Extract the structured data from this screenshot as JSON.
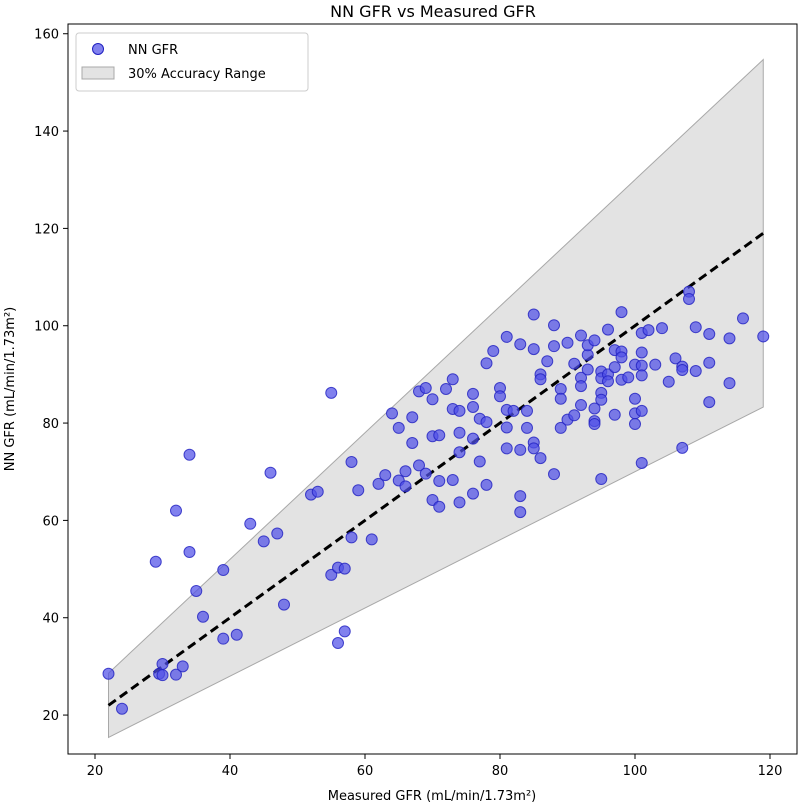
{
  "chart_data": {
    "type": "scatter",
    "title": "NN GFR vs Measured GFR",
    "xlabel": "Measured GFR (mL/min/1.73m²)",
    "ylabel": "NN GFR (mL/min/1.73m²)",
    "xlim": [
      16,
      124
    ],
    "ylim": [
      12,
      162
    ],
    "xticks": [
      20,
      40,
      60,
      80,
      100,
      120
    ],
    "yticks": [
      20,
      40,
      60,
      80,
      100,
      120,
      140,
      160
    ],
    "grid": false,
    "legend_position": "top-left",
    "colors": {
      "points": "#5050e8",
      "points_edge": "#2020c0",
      "band_fill": "#e3e3e3",
      "band_edge": "#a8a8a8",
      "identity": "#000000"
    },
    "band": {
      "name": "30% Accuracy Range",
      "x_range": [
        22,
        119
      ],
      "lower_factor": 0.7,
      "upper_factor": 1.3
    },
    "identity_line": {
      "x_range": [
        22,
        119
      ]
    },
    "series": [
      {
        "name": "NN GFR",
        "points": [
          [
            22,
            28.5
          ],
          [
            24,
            21.3
          ],
          [
            29,
            51.5
          ],
          [
            29.5,
            28.5
          ],
          [
            30,
            30.5
          ],
          [
            30,
            28.2
          ],
          [
            32,
            62
          ],
          [
            32,
            28.3
          ],
          [
            33,
            30
          ],
          [
            34,
            73.5
          ],
          [
            34,
            53.5
          ],
          [
            35,
            45.5
          ],
          [
            36,
            40.2
          ],
          [
            39,
            35.7
          ],
          [
            39,
            49.8
          ],
          [
            41,
            36.5
          ],
          [
            43,
            59.3
          ],
          [
            45,
            55.7
          ],
          [
            46,
            69.8
          ],
          [
            47,
            57.3
          ],
          [
            48,
            42.7
          ],
          [
            52,
            65.3
          ],
          [
            53,
            65.9
          ],
          [
            55,
            86.2
          ],
          [
            55,
            48.8
          ],
          [
            56,
            50.3
          ],
          [
            56,
            34.8
          ],
          [
            57,
            50.1
          ],
          [
            57,
            37.2
          ],
          [
            58,
            56.5
          ],
          [
            58,
            72
          ],
          [
            59,
            66.2
          ],
          [
            61,
            56.1
          ],
          [
            62,
            67.5
          ],
          [
            63,
            69.3
          ],
          [
            64,
            82
          ],
          [
            65,
            68.2
          ],
          [
            65,
            79
          ],
          [
            66,
            70.1
          ],
          [
            66,
            67
          ],
          [
            67,
            75.9
          ],
          [
            67,
            81.2
          ],
          [
            68,
            86.5
          ],
          [
            68,
            71.3
          ],
          [
            69,
            87.2
          ],
          [
            69,
            69.6
          ],
          [
            70,
            77.3
          ],
          [
            70,
            84.9
          ],
          [
            70,
            64.2
          ],
          [
            71,
            77.5
          ],
          [
            71,
            62.8
          ],
          [
            71,
            68.1
          ],
          [
            72,
            87
          ],
          [
            73,
            89
          ],
          [
            73,
            82.9
          ],
          [
            73,
            68.3
          ],
          [
            74,
            82.5
          ],
          [
            74,
            78
          ],
          [
            74,
            74
          ],
          [
            74,
            63.7
          ],
          [
            76,
            86
          ],
          [
            76,
            83.3
          ],
          [
            76,
            76.8
          ],
          [
            76,
            65.5
          ],
          [
            77,
            80.9
          ],
          [
            77,
            72.1
          ],
          [
            78,
            92.3
          ],
          [
            78,
            80.2
          ],
          [
            78,
            67.3
          ],
          [
            79,
            94.8
          ],
          [
            80,
            87.2
          ],
          [
            80,
            85.5
          ],
          [
            81,
            97.7
          ],
          [
            81,
            82.7
          ],
          [
            81,
            79.1
          ],
          [
            81,
            74.8
          ],
          [
            82,
            82.5
          ],
          [
            83,
            96.2
          ],
          [
            83,
            74.5
          ],
          [
            83,
            65
          ],
          [
            83,
            61.7
          ],
          [
            84,
            82.5
          ],
          [
            84,
            79
          ],
          [
            85,
            102.3
          ],
          [
            85,
            95.2
          ],
          [
            85,
            76
          ],
          [
            85,
            74.8
          ],
          [
            86,
            90
          ],
          [
            86,
            89
          ],
          [
            86,
            72.8
          ],
          [
            87,
            92.7
          ],
          [
            88,
            100.1
          ],
          [
            88,
            95.8
          ],
          [
            88,
            69.5
          ],
          [
            89,
            87
          ],
          [
            89,
            85
          ],
          [
            89,
            79
          ],
          [
            90,
            96.5
          ],
          [
            90,
            80.7
          ],
          [
            91,
            92.2
          ],
          [
            91,
            81.6
          ],
          [
            92,
            98
          ],
          [
            92,
            89.3
          ],
          [
            92,
            87.6
          ],
          [
            92,
            83.7
          ],
          [
            93,
            94
          ],
          [
            93,
            96
          ],
          [
            93,
            91
          ],
          [
            94,
            97
          ],
          [
            94,
            83
          ],
          [
            94,
            80.4
          ],
          [
            94,
            79.8
          ],
          [
            95,
            90.6
          ],
          [
            95,
            89.2
          ],
          [
            95,
            86.2
          ],
          [
            95,
            84.8
          ],
          [
            95,
            68.5
          ],
          [
            96,
            99.2
          ],
          [
            96,
            90
          ],
          [
            96,
            88.6
          ],
          [
            97,
            95
          ],
          [
            97,
            91.5
          ],
          [
            97,
            81.7
          ],
          [
            98,
            102.8
          ],
          [
            98,
            94.7
          ],
          [
            98,
            93.5
          ],
          [
            98,
            88.9
          ],
          [
            99,
            89.4
          ],
          [
            100,
            92
          ],
          [
            100,
            85
          ],
          [
            100,
            82
          ],
          [
            100,
            79.8
          ],
          [
            101,
            98.5
          ],
          [
            101,
            94.5
          ],
          [
            101,
            91.8
          ],
          [
            101,
            89.8
          ],
          [
            101,
            82.5
          ],
          [
            101,
            71.8
          ],
          [
            102,
            99.1
          ],
          [
            103,
            92
          ],
          [
            104,
            99.5
          ],
          [
            105,
            88.5
          ],
          [
            106,
            93.3
          ],
          [
            107,
            91.6
          ],
          [
            107,
            90.9
          ],
          [
            107,
            74.9
          ],
          [
            108,
            107
          ],
          [
            108,
            105.5
          ],
          [
            109,
            99.7
          ],
          [
            109,
            90.7
          ],
          [
            111,
            98.3
          ],
          [
            111,
            92.4
          ],
          [
            111,
            84.3
          ],
          [
            114,
            97.4
          ],
          [
            114,
            88.2
          ],
          [
            116,
            101.5
          ],
          [
            119,
            97.8
          ]
        ]
      }
    ]
  }
}
